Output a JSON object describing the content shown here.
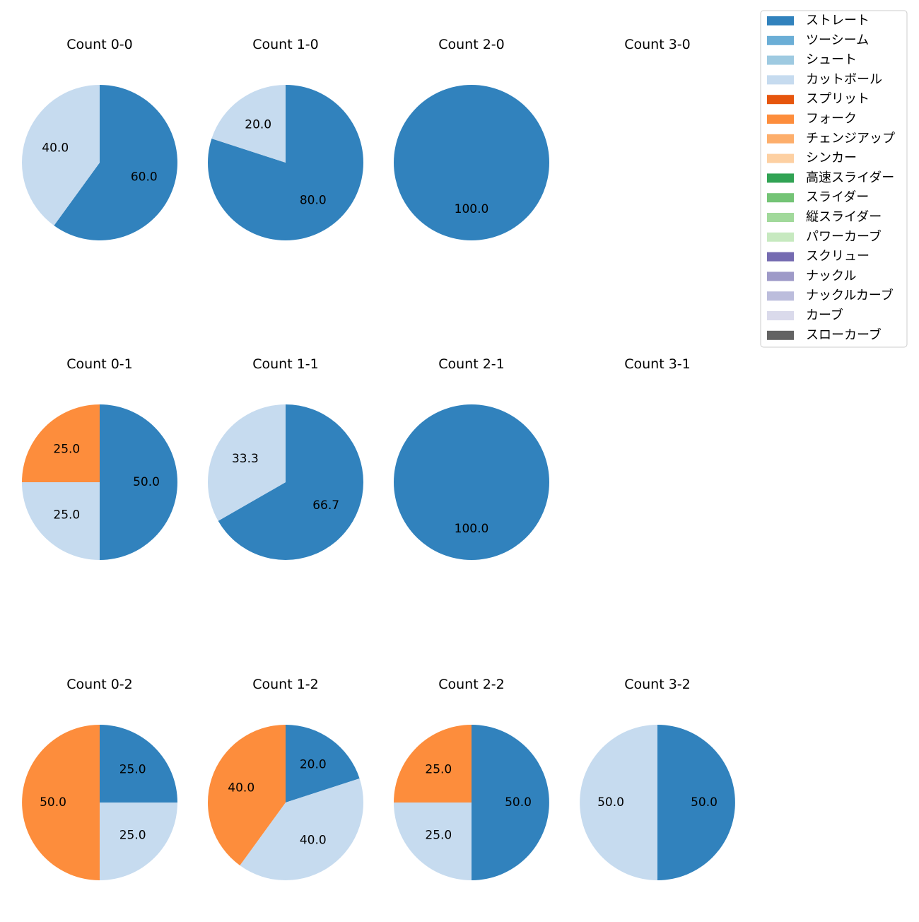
{
  "chart_data": {
    "type": "pie",
    "legend": {
      "placement": "top-right",
      "entries": [
        {
          "label": "ストレート",
          "color": "#3182bd"
        },
        {
          "label": "ツーシーム",
          "color": "#6baed6"
        },
        {
          "label": "シュート",
          "color": "#9ecae1"
        },
        {
          "label": "カットボール",
          "color": "#c6dbef"
        },
        {
          "label": "スプリット",
          "color": "#e6550d"
        },
        {
          "label": "フォーク",
          "color": "#fd8d3c"
        },
        {
          "label": "チェンジアップ",
          "color": "#fdae6b"
        },
        {
          "label": "シンカー",
          "color": "#fdd0a2"
        },
        {
          "label": "高速スライダー",
          "color": "#31a354"
        },
        {
          "label": "スライダー",
          "color": "#74c476"
        },
        {
          "label": "縦スライダー",
          "color": "#a1d99b"
        },
        {
          "label": "パワーカーブ",
          "color": "#c7e9c0"
        },
        {
          "label": "スクリュー",
          "color": "#756bb1"
        },
        {
          "label": "ナックル",
          "color": "#9e9ac8"
        },
        {
          "label": "ナックルカーブ",
          "color": "#bcbddc"
        },
        {
          "label": "カーブ",
          "color": "#dadaeb"
        },
        {
          "label": "スローカーブ",
          "color": "#636363"
        }
      ]
    },
    "pies": [
      {
        "title": "Count 0-0",
        "slices": [
          {
            "pitch": "ストレート",
            "value": 60.0
          },
          {
            "pitch": "カットボール",
            "value": 40.0
          }
        ]
      },
      {
        "title": "Count 1-0",
        "slices": [
          {
            "pitch": "ストレート",
            "value": 80.0
          },
          {
            "pitch": "カットボール",
            "value": 20.0
          }
        ]
      },
      {
        "title": "Count 2-0",
        "slices": [
          {
            "pitch": "ストレート",
            "value": 100.0
          }
        ]
      },
      {
        "title": "Count 3-0",
        "slices": []
      },
      {
        "title": "Count 0-1",
        "slices": [
          {
            "pitch": "ストレート",
            "value": 50.0
          },
          {
            "pitch": "カットボール",
            "value": 25.0
          },
          {
            "pitch": "フォーク",
            "value": 25.0
          }
        ]
      },
      {
        "title": "Count 1-1",
        "slices": [
          {
            "pitch": "ストレート",
            "value": 66.7
          },
          {
            "pitch": "カットボール",
            "value": 33.3
          }
        ]
      },
      {
        "title": "Count 2-1",
        "slices": [
          {
            "pitch": "ストレート",
            "value": 100.0
          }
        ]
      },
      {
        "title": "Count 3-1",
        "slices": []
      },
      {
        "title": "Count 0-2",
        "slices": [
          {
            "pitch": "ストレート",
            "value": 25.0
          },
          {
            "pitch": "カットボール",
            "value": 25.0
          },
          {
            "pitch": "フォーク",
            "value": 50.0
          }
        ]
      },
      {
        "title": "Count 1-2",
        "slices": [
          {
            "pitch": "ストレート",
            "value": 20.0
          },
          {
            "pitch": "カットボール",
            "value": 40.0
          },
          {
            "pitch": "フォーク",
            "value": 40.0
          }
        ]
      },
      {
        "title": "Count 2-2",
        "slices": [
          {
            "pitch": "ストレート",
            "value": 50.0
          },
          {
            "pitch": "カットボール",
            "value": 25.0
          },
          {
            "pitch": "フォーク",
            "value": 25.0
          }
        ]
      },
      {
        "title": "Count 3-2",
        "slices": [
          {
            "pitch": "ストレート",
            "value": 50.0
          },
          {
            "pitch": "カットボール",
            "value": 50.0
          }
        ]
      }
    ]
  }
}
